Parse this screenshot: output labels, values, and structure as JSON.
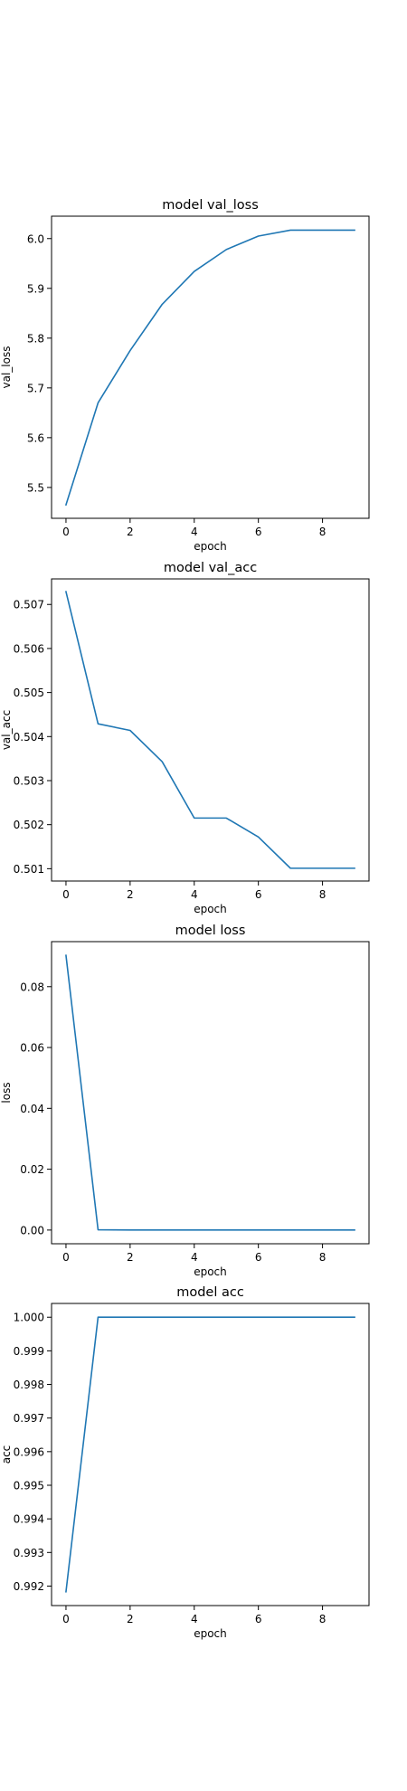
{
  "style": {
    "line_color": "#1f77b4",
    "axes_color": "#000000",
    "background": "#ffffff"
  },
  "chart_data": [
    {
      "type": "line",
      "title": "model val_loss",
      "xlabel": "epoch",
      "ylabel": "val_loss",
      "x": [
        0,
        1,
        2,
        3,
        4,
        5,
        6,
        7,
        8,
        9
      ],
      "series": [
        {
          "values": [
            5.465,
            5.67,
            5.775,
            5.868,
            5.934,
            5.978,
            6.005,
            6.017,
            6.017,
            6.017
          ]
        }
      ],
      "xlim": [
        -0.45,
        9.45
      ],
      "ylim": [
        5.438,
        6.045
      ],
      "xticks": [
        0,
        2,
        4,
        6,
        8
      ],
      "xtick_labels": [
        "0",
        "2",
        "4",
        "6",
        "8"
      ],
      "yticks": [
        5.5,
        5.6,
        5.7,
        5.8,
        5.9,
        6.0
      ],
      "ytick_labels": [
        "5.5",
        "5.6",
        "5.7",
        "5.8",
        "5.9",
        "6.0"
      ],
      "grid": false,
      "legend": "none"
    },
    {
      "type": "line",
      "title": "model val_acc",
      "xlabel": "epoch",
      "ylabel": "val_acc",
      "x": [
        0,
        1,
        2,
        3,
        4,
        5,
        6,
        7,
        8,
        9
      ],
      "series": [
        {
          "values": [
            0.50729,
            0.50429,
            0.50414,
            0.50343,
            0.50215,
            0.50215,
            0.50172,
            0.50101,
            0.50101,
            0.50101
          ]
        }
      ],
      "xlim": [
        -0.45,
        9.45
      ],
      "ylim": [
        0.50072,
        0.50758
      ],
      "xticks": [
        0,
        2,
        4,
        6,
        8
      ],
      "xtick_labels": [
        "0",
        "2",
        "4",
        "6",
        "8"
      ],
      "yticks": [
        0.501,
        0.502,
        0.503,
        0.504,
        0.505,
        0.506,
        0.507
      ],
      "ytick_labels": [
        "0.501",
        "0.502",
        "0.503",
        "0.504",
        "0.505",
        "0.506",
        "0.507"
      ],
      "grid": false,
      "legend": "none"
    },
    {
      "type": "line",
      "title": "model loss",
      "xlabel": "epoch",
      "ylabel": "loss",
      "x": [
        0,
        1,
        2,
        3,
        4,
        5,
        6,
        7,
        8,
        9
      ],
      "series": [
        {
          "values": [
            0.0903,
            0.0001,
            0.0,
            0.0,
            0.0,
            0.0,
            0.0,
            0.0,
            0.0,
            0.0
          ]
        }
      ],
      "xlim": [
        -0.45,
        9.45
      ],
      "ylim": [
        -0.0045,
        0.0948
      ],
      "xticks": [
        0,
        2,
        4,
        6,
        8
      ],
      "xtick_labels": [
        "0",
        "2",
        "4",
        "6",
        "8"
      ],
      "yticks": [
        0.0,
        0.02,
        0.04,
        0.06,
        0.08
      ],
      "ytick_labels": [
        "0.00",
        "0.02",
        "0.04",
        "0.06",
        "0.08"
      ],
      "grid": false,
      "legend": "none"
    },
    {
      "type": "line",
      "title": "model acc",
      "xlabel": "epoch",
      "ylabel": "acc",
      "x": [
        0,
        1,
        2,
        3,
        4,
        5,
        6,
        7,
        8,
        9
      ],
      "series": [
        {
          "values": [
            0.99183,
            1.0,
            1.0,
            1.0,
            1.0,
            1.0,
            1.0,
            1.0,
            1.0,
            1.0
          ]
        }
      ],
      "xlim": [
        -0.45,
        9.45
      ],
      "ylim": [
        0.99142,
        1.00041
      ],
      "xticks": [
        0,
        2,
        4,
        6,
        8
      ],
      "xtick_labels": [
        "0",
        "2",
        "4",
        "6",
        "8"
      ],
      "yticks": [
        0.992,
        0.993,
        0.994,
        0.995,
        0.996,
        0.997,
        0.998,
        0.999,
        1.0
      ],
      "ytick_labels": [
        "0.992",
        "0.993",
        "0.994",
        "0.995",
        "0.996",
        "0.997",
        "0.998",
        "0.999",
        "1.000"
      ],
      "grid": false,
      "legend": "none"
    }
  ]
}
